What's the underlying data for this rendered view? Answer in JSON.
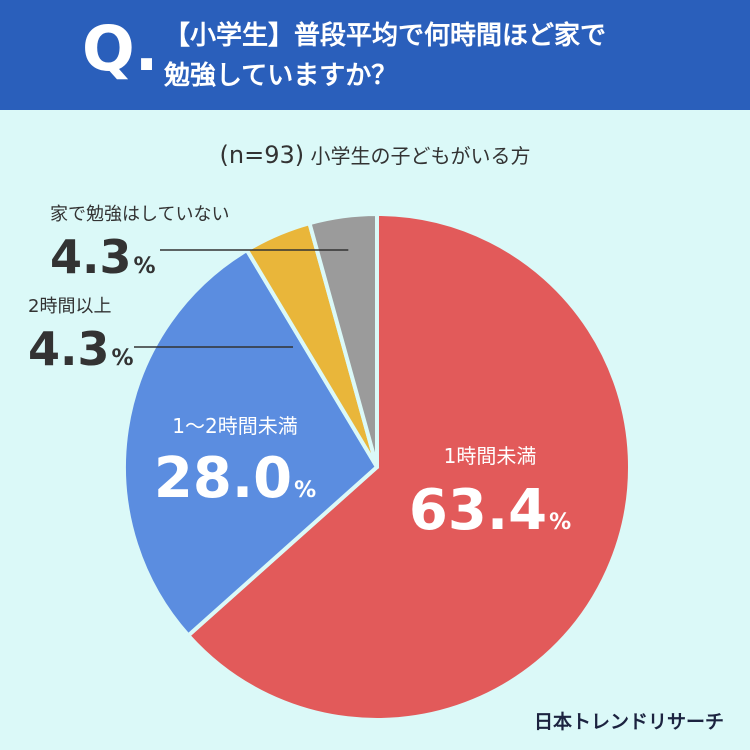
{
  "header": {
    "q_mark": "Q.",
    "question_line1": "【小学生】普段平均で何時間ほど家で",
    "question_line2": "勉強していますか？"
  },
  "sample": {
    "n_label": "(n=93)",
    "group": "小学生の子どもがいる方"
  },
  "brand": "日本トレンドリサーチ",
  "colors": {
    "header_bg": "#2a5fbb",
    "background": "#dbf9f8",
    "slice_1": "#e25a5a",
    "slice_2": "#5b8de0",
    "slice_3": "#e9b63a",
    "slice_4": "#9b9b9b"
  },
  "chart_data": {
    "type": "pie",
    "title": "【小学生】普段平均で何時間ほど家で勉強していますか？",
    "slices": [
      {
        "label": "1時間未満",
        "value": 63.4,
        "display": "63.4",
        "unit": "%"
      },
      {
        "label": "1〜2時間未満",
        "value": 28.0,
        "display": "28.0",
        "unit": "%"
      },
      {
        "label": "2時間以上",
        "value": 4.3,
        "display": "4.3",
        "unit": "%"
      },
      {
        "label": "家で勉強はしていない",
        "value": 4.3,
        "display": "4.3",
        "unit": "%"
      }
    ]
  }
}
